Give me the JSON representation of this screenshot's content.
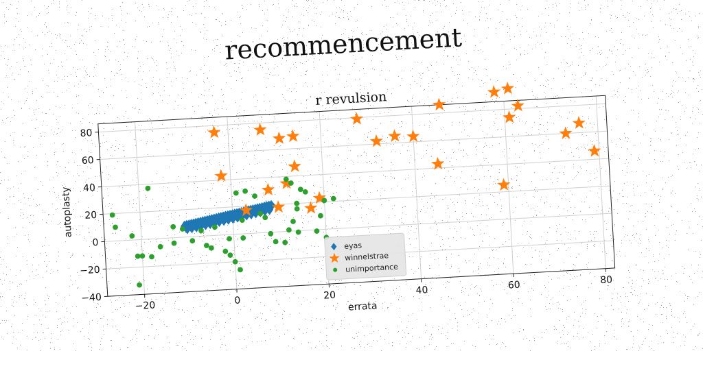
{
  "page": {
    "title": "recommencement"
  },
  "chart_data": {
    "type": "scatter",
    "title": "r revulsion",
    "xlabel": "errata",
    "ylabel": "autoplasty",
    "xlim": [
      -28,
      82
    ],
    "ylim": [
      -40,
      86
    ],
    "xticks": [
      -20,
      0,
      20,
      40,
      60,
      80
    ],
    "yticks": [
      -40,
      -20,
      0,
      20,
      40,
      60,
      80
    ],
    "grid": true,
    "legend_position": "lower center",
    "series": [
      {
        "name": "eyas",
        "marker": "diamond",
        "color": "#1f77b4",
        "points": [
          [
            -10.5,
            8
          ],
          [
            -10,
            8.5
          ],
          [
            -9.5,
            8.7
          ],
          [
            -9,
            9
          ],
          [
            -8.5,
            9.3
          ],
          [
            -8,
            9.6
          ],
          [
            -7.5,
            9.9
          ],
          [
            -7,
            10.2
          ],
          [
            -6.5,
            10.5
          ],
          [
            -6,
            10.8
          ],
          [
            -5.5,
            11.1
          ],
          [
            -5,
            11.4
          ],
          [
            -4.5,
            11.7
          ],
          [
            -4,
            12
          ],
          [
            -3.5,
            12.3
          ],
          [
            -3,
            12.6
          ],
          [
            -2.5,
            12.9
          ],
          [
            -2,
            13.2
          ],
          [
            -1.5,
            13.5
          ],
          [
            -1,
            13.8
          ],
          [
            -0.5,
            14.1
          ],
          [
            0,
            14.4
          ],
          [
            0.5,
            14.7
          ],
          [
            1,
            15
          ],
          [
            1.5,
            15.3
          ],
          [
            2,
            15.6
          ],
          [
            2.5,
            15.9
          ],
          [
            3,
            16.2
          ],
          [
            3.5,
            16.5
          ],
          [
            4,
            16.8
          ],
          [
            4.5,
            17.1
          ],
          [
            5,
            17.4
          ],
          [
            5.5,
            17.7
          ],
          [
            6,
            18
          ],
          [
            6.5,
            18.3
          ],
          [
            7,
            18.6
          ],
          [
            7.5,
            18.9
          ],
          [
            8,
            19.2
          ],
          [
            8.5,
            19.5
          ],
          [
            -10,
            6
          ],
          [
            -9,
            6.5
          ],
          [
            -8,
            7
          ],
          [
            -7,
            7.6
          ],
          [
            -6,
            8.2
          ],
          [
            -5,
            8.8
          ],
          [
            -4,
            9.4
          ],
          [
            -3,
            10
          ],
          [
            -2,
            10.6
          ],
          [
            -1,
            11.2
          ],
          [
            0,
            11.8
          ],
          [
            1,
            12.4
          ],
          [
            2,
            13
          ],
          [
            3,
            13.6
          ],
          [
            4,
            14.2
          ],
          [
            5,
            14.8
          ],
          [
            6,
            15.4
          ],
          [
            7,
            16
          ],
          [
            8,
            16.6
          ]
        ]
      },
      {
        "name": "winnelstrae",
        "marker": "star",
        "color": "#ff7f0e",
        "points": [
          [
            -3,
            75
          ],
          [
            7,
            75
          ],
          [
            11,
            68
          ],
          [
            14,
            69
          ],
          [
            28,
            79
          ],
          [
            32,
            62
          ],
          [
            36,
            65
          ],
          [
            40,
            64
          ],
          [
            46,
            86
          ],
          [
            58,
            93
          ],
          [
            61,
            95
          ],
          [
            61,
            74
          ],
          [
            63,
            82
          ],
          [
            73,
            60
          ],
          [
            76,
            67
          ],
          [
            79,
            46
          ],
          [
            -2,
            43
          ],
          [
            14,
            47
          ],
          [
            12,
            35
          ],
          [
            8,
            31
          ],
          [
            19,
            23
          ],
          [
            45,
            43
          ],
          [
            59,
            25
          ],
          [
            10,
            18
          ],
          [
            17,
            16
          ],
          [
            3,
            17
          ]
        ]
      },
      {
        "name": "unimportance",
        "marker": "circle",
        "color": "#2ca02c",
        "points": [
          [
            -26,
            19
          ],
          [
            -25.5,
            10
          ],
          [
            -22,
            3
          ],
          [
            -21,
            -12
          ],
          [
            -20,
            -12
          ],
          [
            -18,
            -13
          ],
          [
            -16,
            -6
          ],
          [
            -18,
            37
          ],
          [
            -13,
            8
          ],
          [
            -13,
            -4
          ],
          [
            -11,
            6
          ],
          [
            -9,
            -3
          ],
          [
            -7,
            4
          ],
          [
            -6,
            -7
          ],
          [
            -5,
            -9
          ],
          [
            -4,
            6
          ],
          [
            -2,
            -12
          ],
          [
            -1,
            -15
          ],
          [
            -1,
            -3
          ],
          [
            0,
            -20
          ],
          [
            1,
            -26
          ],
          [
            2,
            -3
          ],
          [
            1,
            30
          ],
          [
            3,
            31
          ],
          [
            2,
            10
          ],
          [
            5,
            27
          ],
          [
            6,
            14
          ],
          [
            7,
            11
          ],
          [
            8,
            -1
          ],
          [
            9,
            -7
          ],
          [
            11,
            -8
          ],
          [
            12,
            1
          ],
          [
            13,
            7
          ],
          [
            14,
            -1
          ],
          [
            12,
            38
          ],
          [
            13,
            35
          ],
          [
            14,
            20
          ],
          [
            15,
            30
          ],
          [
            16,
            28
          ],
          [
            14,
            16
          ],
          [
            18,
            -1
          ],
          [
            20,
            -6
          ],
          [
            19,
            10
          ],
          [
            20,
            21
          ],
          [
            22,
            22
          ],
          [
            -21,
            -33
          ]
        ]
      }
    ]
  }
}
